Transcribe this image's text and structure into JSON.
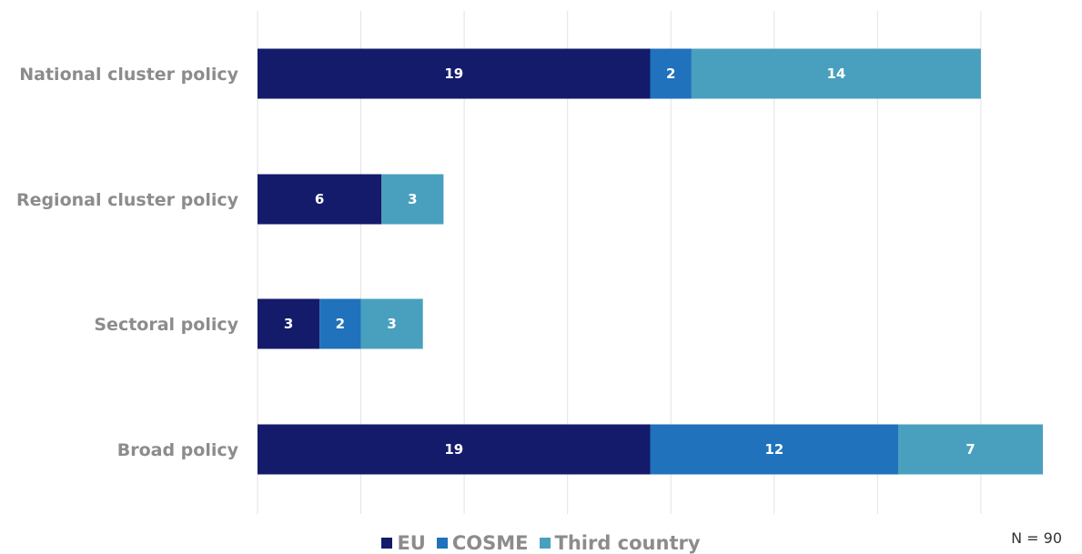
{
  "chart_data": {
    "type": "bar",
    "orientation": "horizontal",
    "stacked": true,
    "categories": [
      "National cluster policy",
      "Regional cluster policy",
      "Sectoral policy",
      "Broad policy"
    ],
    "series": [
      {
        "name": "EU",
        "values": [
          19,
          6,
          3,
          19
        ],
        "color": "#141b6b"
      },
      {
        "name": "COSME",
        "values": [
          2,
          0,
          2,
          12
        ],
        "color": "#1f72bb"
      },
      {
        "name": "Third country",
        "values": [
          14,
          3,
          3,
          7
        ],
        "color": "#49a0be"
      }
    ],
    "xlim": [
      0,
      38
    ],
    "grid": true,
    "legend_position": "bottom",
    "title": "",
    "xlabel": "",
    "ylabel": ""
  },
  "note": "N = 90"
}
